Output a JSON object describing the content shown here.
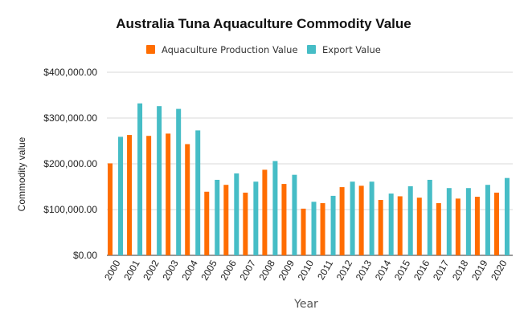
{
  "chart_data": {
    "type": "bar",
    "title": "Australia Tuna Aquaculture Commodity Value",
    "xlabel": "Year",
    "ylabel": "Commodity value",
    "categories": [
      "2000",
      "2001",
      "2002",
      "2003",
      "2004",
      "2005",
      "2006",
      "2007",
      "2008",
      "2009",
      "2010",
      "2011",
      "2012",
      "2013",
      "2014",
      "2015",
      "2016",
      "2017",
      "2018",
      "2019",
      "2020"
    ],
    "series": [
      {
        "name": "Aquaculture Production Value",
        "color": "#FF6D01",
        "values": [
          201000,
          263000,
          261000,
          266000,
          243000,
          139000,
          154000,
          137000,
          187000,
          156000,
          102000,
          114000,
          149000,
          152000,
          121000,
          129000,
          126000,
          114000,
          124000,
          128000,
          137000
        ]
      },
      {
        "name": "Export Value",
        "color": "#46BDC6",
        "values": [
          259000,
          332000,
          326000,
          320000,
          273000,
          165000,
          179000,
          161000,
          206000,
          176000,
          117000,
          130000,
          161000,
          161000,
          135000,
          151000,
          165000,
          147000,
          147000,
          154000,
          169000
        ]
      }
    ],
    "ylim": [
      0,
      400000
    ],
    "yticks": [
      0,
      100000,
      200000,
      300000,
      400000
    ],
    "ytick_labels": [
      "$0.00",
      "$100,000.00",
      "$200,000.00",
      "$300,000.00",
      "$400,000.00"
    ],
    "grid": true,
    "legend_position": "top"
  }
}
